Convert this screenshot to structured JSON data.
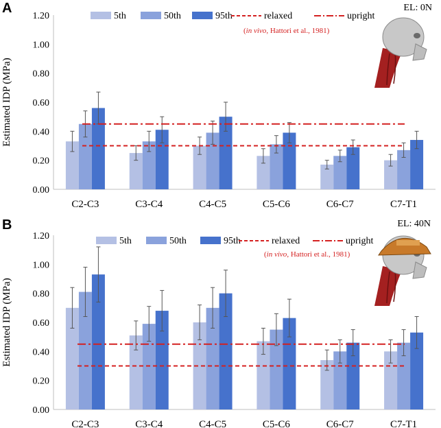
{
  "chart_data": [
    {
      "type": "bar",
      "panel": "A",
      "el_label": "EL: 0N",
      "ylabel": "Estimated IDP (MPa)",
      "ylim": [
        0,
        1.2
      ],
      "yticks": [
        "0.00",
        "0.20",
        "0.40",
        "0.60",
        "0.80",
        "1.00",
        "1.20"
      ],
      "categories": [
        "C2-C3",
        "C3-C4",
        "C4-C5",
        "C5-C6",
        "C6-C7",
        "C7-T1"
      ],
      "series": [
        {
          "name": "5th",
          "color": "#b4c0e4",
          "values": [
            0.33,
            0.25,
            0.3,
            0.23,
            0.17,
            0.2
          ],
          "errors": [
            0.07,
            0.05,
            0.06,
            0.05,
            0.03,
            0.04
          ]
        },
        {
          "name": "50th",
          "color": "#8aa2dc",
          "values": [
            0.45,
            0.33,
            0.39,
            0.31,
            0.23,
            0.27
          ],
          "errors": [
            0.09,
            0.07,
            0.08,
            0.06,
            0.04,
            0.05
          ]
        },
        {
          "name": "95th",
          "color": "#4672cc",
          "values": [
            0.56,
            0.41,
            0.5,
            0.39,
            0.29,
            0.34
          ],
          "errors": [
            0.11,
            0.09,
            0.1,
            0.07,
            0.05,
            0.06
          ]
        }
      ],
      "reference_lines": [
        {
          "name": "relaxed",
          "style": "dashed",
          "value": 0.3,
          "color": "#d42020"
        },
        {
          "name": "upright",
          "style": "dashdot",
          "value": 0.45,
          "color": "#d42020"
        }
      ],
      "note": {
        "prefix": "(",
        "italic": "in vivo",
        "rest": ", Hattori et al., 1981)"
      }
    },
    {
      "type": "bar",
      "panel": "B",
      "el_label": "EL: 40N",
      "ylabel": "Estimated IDP (MPa)",
      "ylim": [
        0,
        1.2
      ],
      "yticks": [
        "0.00",
        "0.20",
        "0.40",
        "0.60",
        "0.80",
        "1.00",
        "1.20"
      ],
      "categories": [
        "C2-C3",
        "C3-C4",
        "C4-C5",
        "C5-C6",
        "C6-C7",
        "C7-T1"
      ],
      "series": [
        {
          "name": "5th",
          "color": "#b4c0e4",
          "values": [
            0.7,
            0.51,
            0.6,
            0.47,
            0.34,
            0.4
          ],
          "errors": [
            0.14,
            0.1,
            0.12,
            0.09,
            0.07,
            0.08
          ]
        },
        {
          "name": "50th",
          "color": "#8aa2dc",
          "values": [
            0.81,
            0.59,
            0.7,
            0.55,
            0.4,
            0.46
          ],
          "errors": [
            0.17,
            0.12,
            0.14,
            0.11,
            0.08,
            0.09
          ]
        },
        {
          "name": "95th",
          "color": "#4672cc",
          "values": [
            0.93,
            0.68,
            0.8,
            0.63,
            0.46,
            0.53
          ],
          "errors": [
            0.19,
            0.14,
            0.16,
            0.13,
            0.09,
            0.11
          ]
        }
      ],
      "reference_lines": [
        {
          "name": "relaxed",
          "style": "dashed",
          "value": 0.3,
          "color": "#d42020"
        },
        {
          "name": "upright",
          "style": "dashdot",
          "value": 0.45,
          "color": "#d42020"
        }
      ],
      "note": {
        "prefix": "(",
        "italic": "in vivo",
        "rest": ", Hattori et al., 1981)"
      }
    }
  ]
}
